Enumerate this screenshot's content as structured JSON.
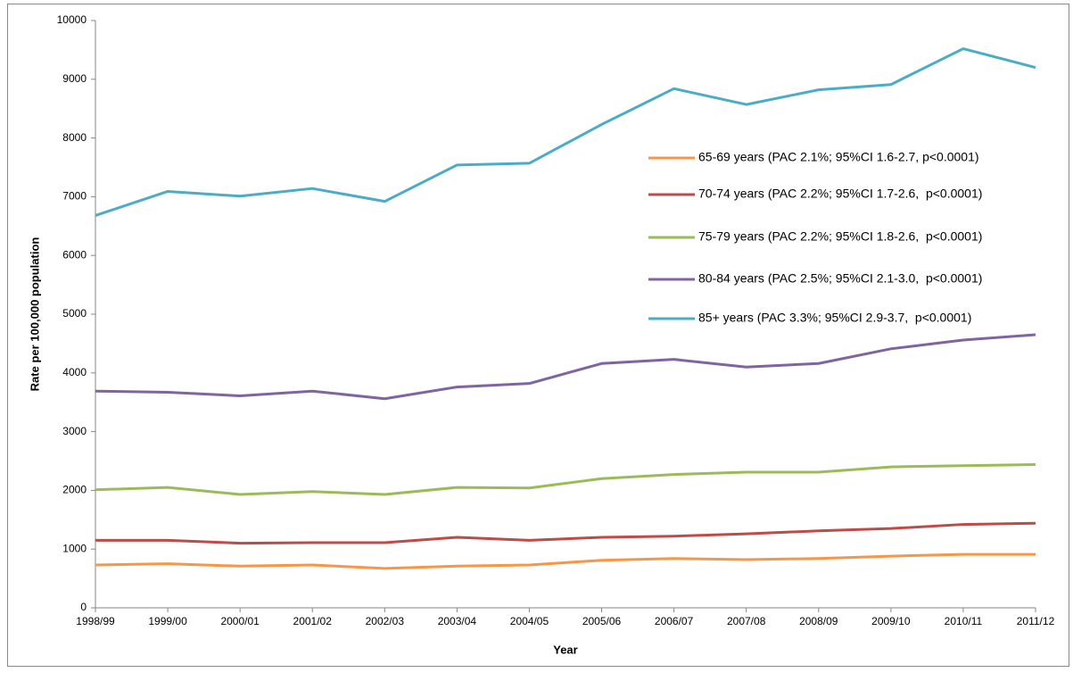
{
  "chart_data": {
    "type": "line",
    "x_label": "Year",
    "y_label": "Rate per 100,000 population",
    "categories": [
      "1998/99",
      "1999/00",
      "2000/01",
      "2001/02",
      "2002/03",
      "2003/04",
      "2004/05",
      "2005/06",
      "2006/07",
      "2007/08",
      "2008/09",
      "2009/10",
      "2010/11",
      "2011/12"
    ],
    "ylim": [
      0,
      10000
    ],
    "yticks": [
      0,
      1000,
      2000,
      3000,
      4000,
      5000,
      6000,
      7000,
      8000,
      9000,
      10000
    ],
    "grid": false,
    "legend": "right",
    "series": [
      {
        "name": "65-69 years (PAC 2.1%; 95%CI 1.6-2.7, p<0.0001)",
        "color": "#F79646",
        "values": [
          730,
          750,
          710,
          730,
          670,
          710,
          730,
          810,
          840,
          820,
          840,
          880,
          910,
          910
        ]
      },
      {
        "name": "70-74 years (PAC 2.2%; 95%CI 1.7-2.6,  p<0.0001)",
        "color": "#BE4B48",
        "values": [
          1150,
          1150,
          1100,
          1110,
          1110,
          1200,
          1150,
          1200,
          1220,
          1260,
          1310,
          1350,
          1420,
          1440
        ]
      },
      {
        "name": "75-79 years (PAC 2.2%; 95%CI 1.8-2.6,  p<0.0001)",
        "color": "#9BBB59",
        "values": [
          2010,
          2050,
          1930,
          1980,
          1930,
          2050,
          2040,
          2200,
          2270,
          2310,
          2310,
          2400,
          2420,
          2440
        ]
      },
      {
        "name": "80-84 years (PAC 2.5%; 95%CI 2.1-3.0,  p<0.0001)",
        "color": "#8064A2",
        "values": [
          3690,
          3670,
          3610,
          3690,
          3560,
          3760,
          3820,
          4160,
          4230,
          4100,
          4160,
          4410,
          4560,
          4650
        ]
      },
      {
        "name": "85+ years (PAC 3.3%; 95%CI 2.9-3.7,  p<0.0001)",
        "color": "#4BACC6",
        "values": [
          6680,
          7090,
          7010,
          7140,
          6920,
          7540,
          7570,
          8230,
          8840,
          8570,
          8820,
          8910,
          9520,
          9200
        ]
      }
    ]
  }
}
